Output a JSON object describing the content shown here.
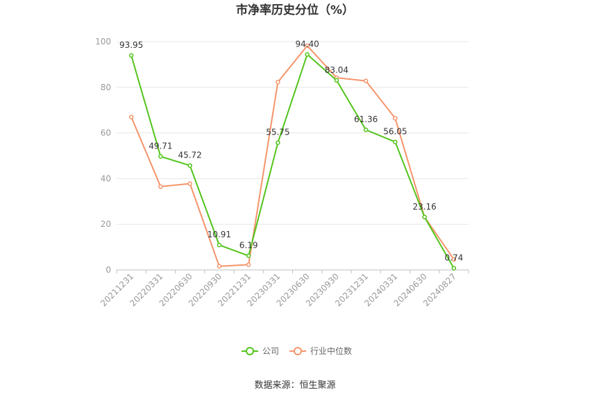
{
  "chart_data": {
    "type": "line",
    "title": "市净率历史分位（%）",
    "xlabel": "",
    "ylabel": "",
    "x": [
      "20211231",
      "20220331",
      "20220630",
      "20220930",
      "20221231",
      "20230331",
      "20230630",
      "20230930",
      "20231231",
      "20240331",
      "20240630",
      "20240827"
    ],
    "ylim": [
      0,
      100
    ],
    "yticks": [
      0,
      20,
      40,
      60,
      80,
      100
    ],
    "grid": true,
    "legend_position": "bottom",
    "series": [
      {
        "name": "公司",
        "color": "#52c41a",
        "values": [
          93.95,
          49.71,
          45.72,
          10.91,
          6.19,
          55.75,
          94.4,
          83.04,
          61.36,
          56.05,
          23.16,
          0.74
        ],
        "labels": [
          "93.95",
          "49.71",
          "45.72",
          "10.91",
          "6.19",
          "55.75",
          "94.40",
          "83.04",
          "61.36",
          "56.05",
          "23.16",
          "0.74"
        ]
      },
      {
        "name": "行业中位数",
        "color": "#f5946a",
        "values": [
          67.0,
          36.5,
          37.8,
          1.6,
          2.3,
          82.3,
          98.2,
          84.2,
          82.8,
          66.4,
          23.2,
          4.6
        ]
      }
    ]
  },
  "source": "数据来源：恒生聚源"
}
